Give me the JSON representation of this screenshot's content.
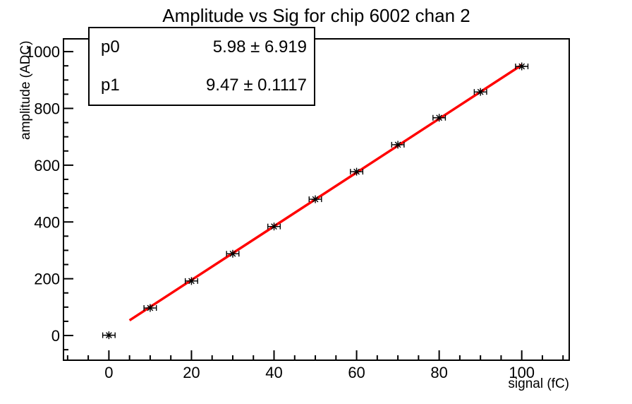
{
  "window": {
    "background_color": "#ffffff",
    "axis_color": "#000000"
  },
  "chart_data": {
    "type": "scatter",
    "title": "Amplitude vs Sig for chip 6002 chan 2",
    "xlabel": "signal (fC)",
    "ylabel": "amplitude (ADC)",
    "x": [
      0,
      10,
      20,
      30,
      40,
      50,
      60,
      70,
      80,
      90,
      100
    ],
    "y": [
      1,
      97,
      192,
      288,
      384,
      480,
      577,
      672,
      767,
      858,
      948
    ],
    "xerr": 1.5,
    "marker": "asterisk",
    "marker_color": "#000000",
    "xlim": [
      -11,
      111.5
    ],
    "ylim": [
      -87,
      1045
    ],
    "xticks": [
      0,
      20,
      40,
      60,
      80,
      100
    ],
    "yticks": [
      0,
      200,
      400,
      600,
      800,
      1000
    ],
    "x_minor_step": 5,
    "y_minor_step": 50,
    "grid": false,
    "legend": "none",
    "fit": {
      "type": "linear",
      "p0": 5.98,
      "p0_error": 6.919,
      "p1": 9.47,
      "p1_error": 0.1117,
      "range": [
        5,
        100
      ],
      "color": "#ff0000"
    },
    "stats_box": {
      "rows": [
        {
          "label": "p0",
          "value": "5.98 ± 6.919"
        },
        {
          "label": "p1",
          "value": "9.47 ± 0.1117"
        }
      ]
    }
  }
}
